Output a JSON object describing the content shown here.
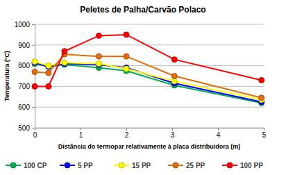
{
  "chart_data": {
    "type": "line",
    "title": "Peletes de Palha/Carvão Polaco",
    "x_label": "Distância do termopar relativamente à placa distribuidora  (m)",
    "y_label": "Temperatura (°C)",
    "x": [
      0,
      0.3,
      0.65,
      1.4,
      2.0,
      3.05,
      4.95
    ],
    "series": [
      {
        "name": "100 CP",
        "color": "#00b050",
        "values": [
          810,
          795,
          805,
          790,
          775,
          705,
          620
        ]
      },
      {
        "name": "5 PP",
        "color": "#0000ff",
        "values": [
          815,
          795,
          810,
          805,
          790,
          715,
          625
        ]
      },
      {
        "name": "15 PP",
        "color": "#ffff00",
        "values": [
          820,
          800,
          815,
          810,
          785,
          725,
          635
        ]
      },
      {
        "name": "25 PP",
        "color": "#e46c0a",
        "values": [
          770,
          765,
          855,
          845,
          845,
          750,
          645
        ]
      },
      {
        "name": "100 PP",
        "color": "#ff0000",
        "values": [
          700,
          700,
          870,
          945,
          950,
          830,
          730
        ]
      }
    ],
    "xlim": [
      0,
      5
    ],
    "xticks": [
      0,
      1,
      2,
      3,
      4,
      5
    ],
    "ylim": [
      500,
      1000
    ],
    "yticks": [
      500,
      600,
      700,
      800,
      900,
      1000
    ],
    "grid": true,
    "legend": "bottom",
    "marker": "circle"
  }
}
